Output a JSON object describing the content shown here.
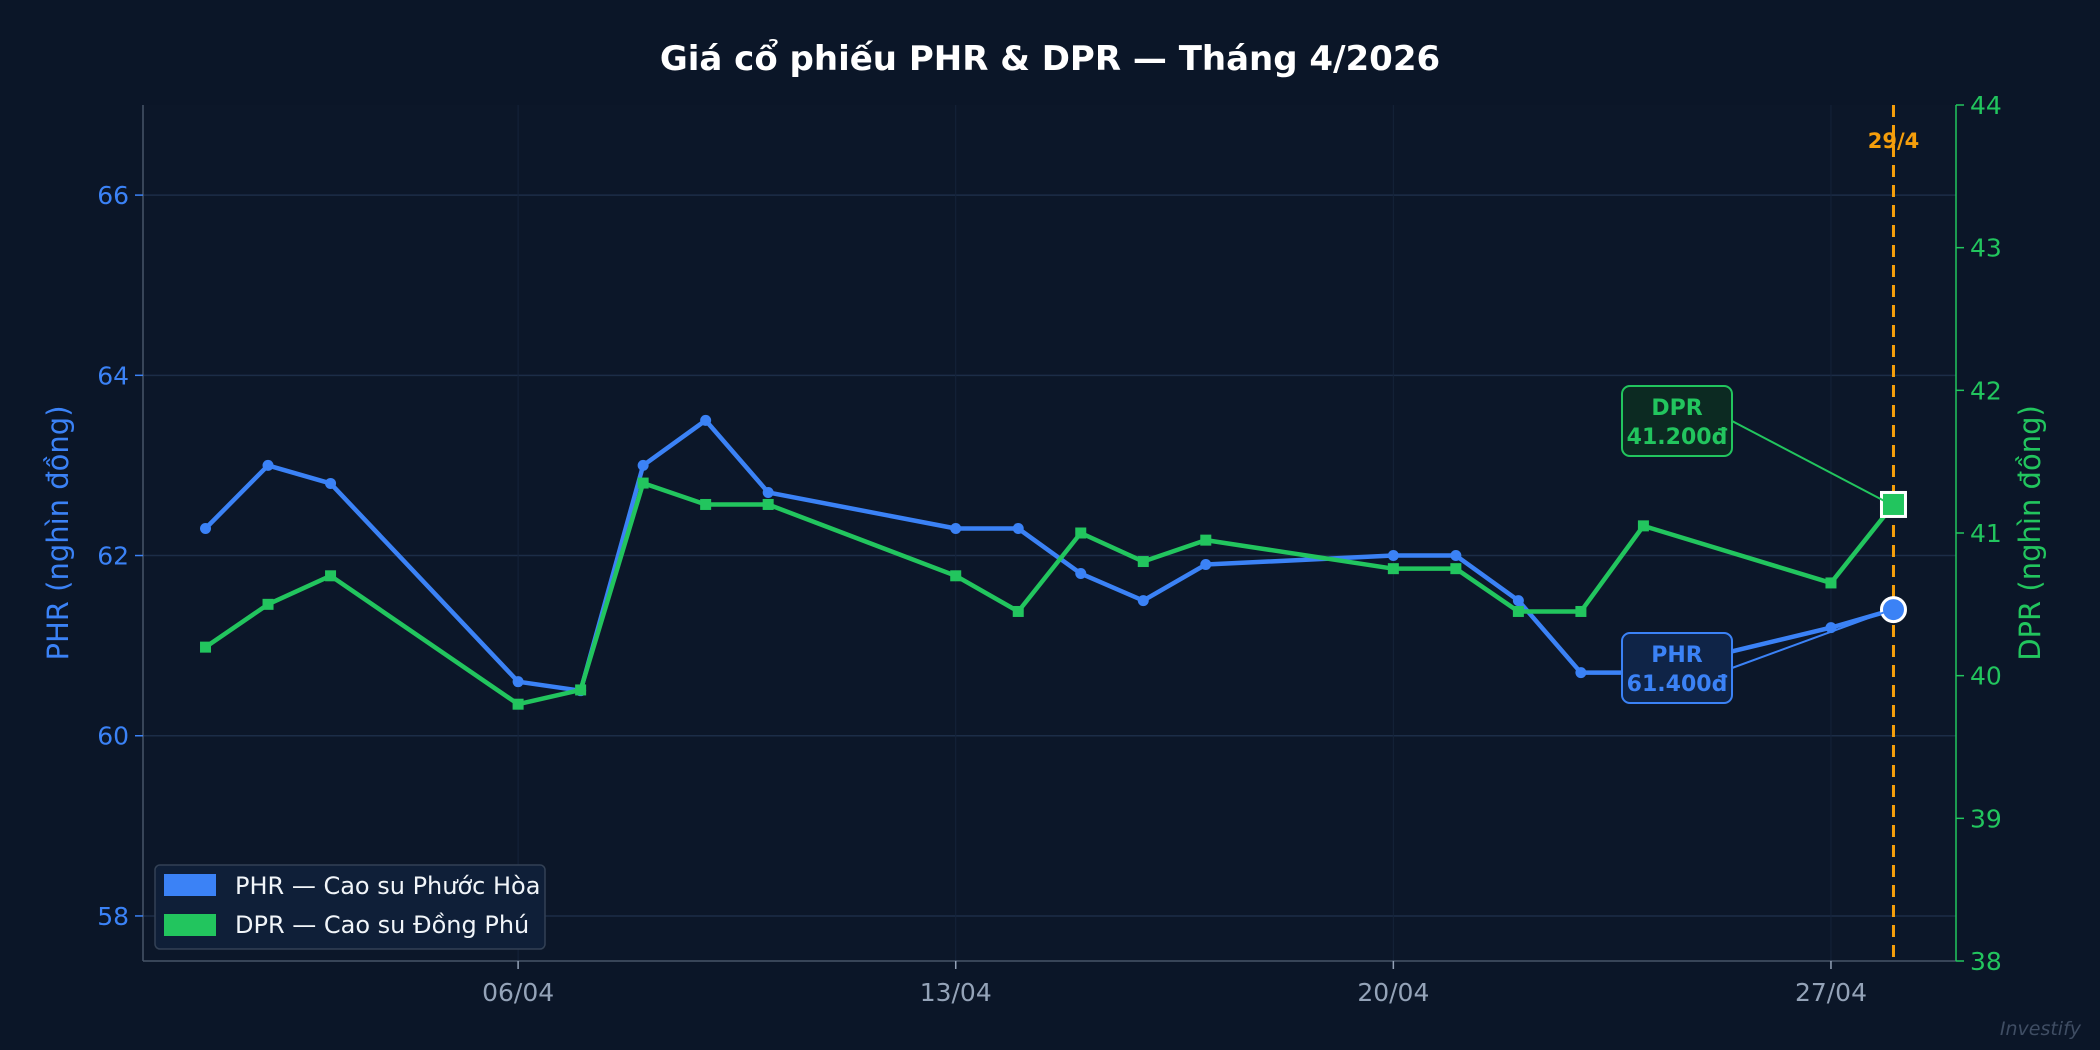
{
  "chart_data": {
    "type": "line",
    "title": "Giá cổ phiếu PHR & DPR — Tháng 4/2026",
    "ylabel_left": "PHR (nghìn đồng)",
    "ylabel_right": "DPR (nghìn đồng)",
    "ylim_left": [
      57.5,
      67
    ],
    "ylim_right": [
      38,
      44
    ],
    "yticks_left": [
      58,
      60,
      62,
      64,
      66
    ],
    "yticks_right": [
      38,
      39,
      40,
      41,
      42,
      43,
      44
    ],
    "xlim": [
      "2026-03-31",
      "2026-04-29"
    ],
    "xticks": [
      {
        "date": "2026-04-06",
        "label": "06/04"
      },
      {
        "date": "2026-04-13",
        "label": "13/04"
      },
      {
        "date": "2026-04-20",
        "label": "20/04"
      },
      {
        "date": "2026-04-27",
        "label": "27/04"
      }
    ],
    "grid": true,
    "legend_position": "lower-left",
    "series": [
      {
        "name": "PHR — Cao su Phước Hòa",
        "axis": "left",
        "color": "#3b82f6",
        "marker": "circle",
        "x": [
          "2026-04-01",
          "2026-04-02",
          "2026-04-03",
          "2026-04-06",
          "2026-04-07",
          "2026-04-08",
          "2026-04-09",
          "2026-04-10",
          "2026-04-13",
          "2026-04-14",
          "2026-04-15",
          "2026-04-16",
          "2026-04-17",
          "2026-04-20",
          "2026-04-21",
          "2026-04-22",
          "2026-04-23",
          "2026-04-24",
          "2026-04-27",
          "2026-04-28"
        ],
        "y": [
          62.3,
          63.0,
          62.8,
          60.6,
          60.5,
          63.0,
          63.5,
          62.7,
          62.3,
          62.3,
          61.8,
          61.5,
          61.9,
          62.0,
          62.0,
          61.5,
          60.7,
          60.7,
          61.2,
          61.4
        ]
      },
      {
        "name": "DPR — Cao su Đồng Phú",
        "axis": "right",
        "color": "#22c55e",
        "marker": "square",
        "x": [
          "2026-04-01",
          "2026-04-02",
          "2026-04-03",
          "2026-04-06",
          "2026-04-07",
          "2026-04-08",
          "2026-04-09",
          "2026-04-10",
          "2026-04-13",
          "2026-04-14",
          "2026-04-15",
          "2026-04-16",
          "2026-04-17",
          "2026-04-20",
          "2026-04-21",
          "2026-04-22",
          "2026-04-23",
          "2026-04-24",
          "2026-04-27",
          "2026-04-28"
        ],
        "y": [
          40.2,
          40.5,
          40.7,
          39.8,
          39.9,
          41.35,
          41.2,
          41.2,
          40.7,
          40.45,
          41.0,
          40.8,
          40.95,
          40.75,
          40.75,
          40.45,
          40.45,
          41.05,
          40.65,
          41.2
        ]
      }
    ],
    "vline": {
      "date": "2026-04-28",
      "label": "29/4",
      "color": "#f59e0b"
    },
    "annotations": [
      {
        "series": "PHR",
        "title": "PHR",
        "value": "61.400đ",
        "color": "#3b82f6"
      },
      {
        "series": "DPR",
        "title": "DPR",
        "value": "41.200đ",
        "color": "#22c55e"
      }
    ],
    "legend": [
      {
        "label": "PHR — Cao su Phước Hòa",
        "color": "#3b82f6"
      },
      {
        "label": "DPR — Cao su Đồng Phú",
        "color": "#22c55e"
      }
    ]
  },
  "watermark": "Investify"
}
